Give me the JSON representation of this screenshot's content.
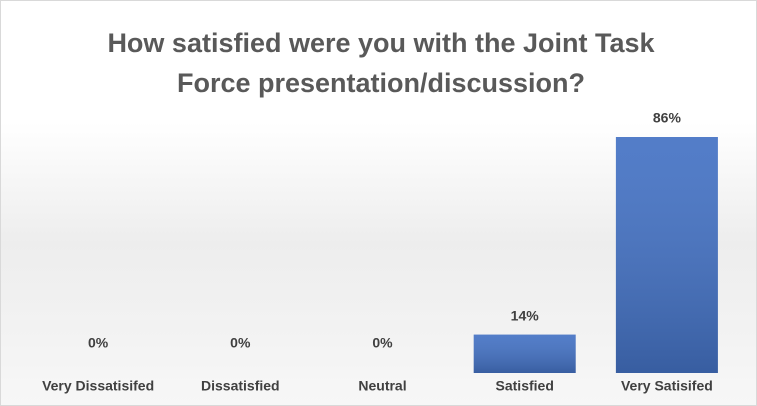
{
  "chart_data": {
    "type": "bar",
    "title": "How satisfied were you with the Joint Task Force presentation/discussion?",
    "categories": [
      "Very Dissatisifed",
      "Dissatisfied",
      "Neutral",
      "Satisfied",
      "Very Satisifed"
    ],
    "values": [
      0,
      0,
      0,
      14,
      86
    ],
    "value_labels": [
      "0%",
      "0%",
      "0%",
      "14%",
      "86%"
    ],
    "color": "#4472c4"
  }
}
